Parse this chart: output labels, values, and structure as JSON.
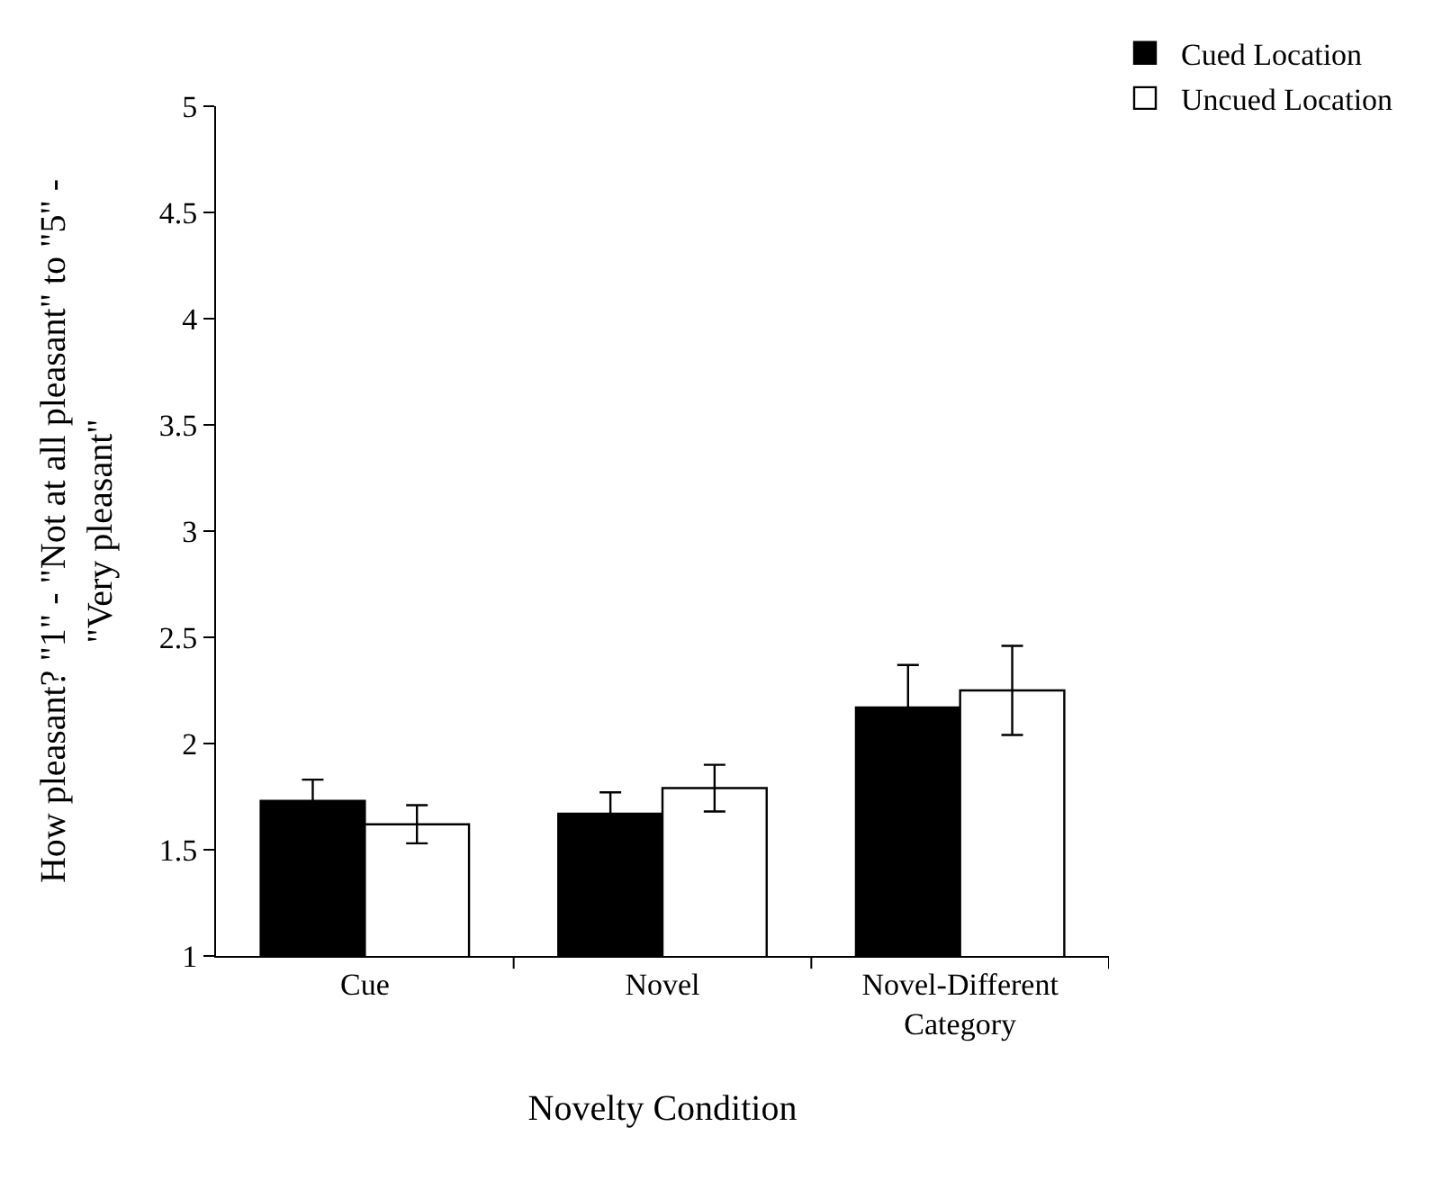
{
  "chart_data": {
    "type": "bar",
    "xlabel": "Novelty Condition",
    "ylabel": "How pleasant? \"1\" - \"Not at all pleasant\" to \"5\" - \"Very pleasant\"",
    "categories": [
      "Cue",
      "Novel",
      "Novel-Different Category"
    ],
    "series": [
      {
        "name": "Cued Location",
        "color": "#000000",
        "values": [
          1.73,
          1.67,
          2.17
        ],
        "errors": [
          0.1,
          0.1,
          0.2
        ]
      },
      {
        "name": "Uncued Location",
        "color": "#ffffff",
        "values": [
          1.62,
          1.79,
          2.25
        ],
        "errors": [
          0.09,
          0.11,
          0.21
        ]
      }
    ],
    "ylim": [
      1,
      5
    ],
    "yticks": [
      1,
      1.5,
      2,
      2.5,
      3,
      3.5,
      4,
      4.5,
      5
    ],
    "grid": false,
    "legend": "top right"
  }
}
